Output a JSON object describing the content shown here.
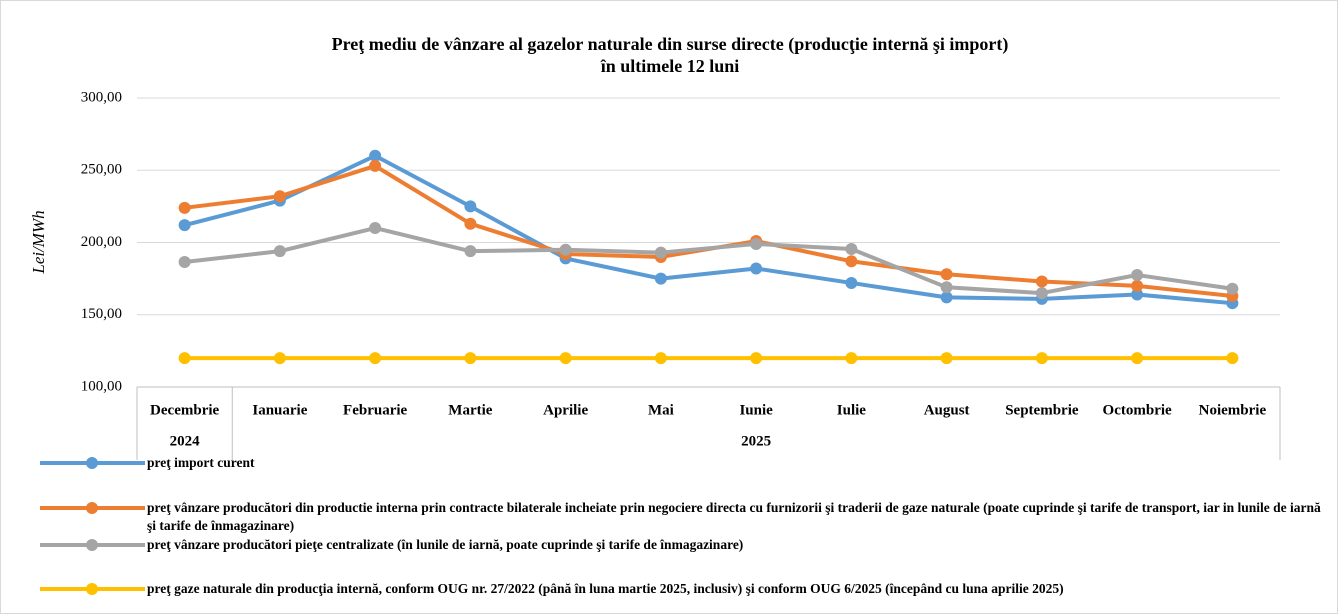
{
  "chart_data": {
    "type": "line",
    "title": [
      "Preţ  mediu de vânzare al gazelor naturale din surse directe (producţie internă şi import)",
      "în ultimele 12 luni"
    ],
    "y_label": "Lei/MWh",
    "categories": [
      "Decembrie",
      "Ianuarie",
      "Februarie",
      "Martie",
      "Aprilie",
      "Mai",
      "Iunie",
      "Iulie",
      "August",
      "Septembrie",
      "Octombrie",
      "Noiembrie"
    ],
    "x_groups": [
      {
        "label": "2024",
        "count": 1
      },
      {
        "label": "2025",
        "count": 11
      }
    ],
    "ylim": [
      100,
      300
    ],
    "yticks": [
      {
        "value": 100,
        "label": "100,00"
      },
      {
        "value": 150,
        "label": "150,00"
      },
      {
        "value": 200,
        "label": "200,00"
      },
      {
        "value": 250,
        "label": "250,00"
      },
      {
        "value": 300,
        "label": "300,00"
      }
    ],
    "grid": true,
    "legend": "bottom",
    "series": [
      {
        "name": "preţ import curent",
        "color": "#5b9bd5",
        "values": [
          212,
          229,
          260,
          225,
          189,
          175,
          182,
          172,
          162,
          161,
          164,
          158
        ]
      },
      {
        "name": "preţ vânzare producători din productie interna prin contracte bilaterale incheiate  prin negociere directa cu furnizorii şi traderii de gaze naturale (poate cuprinde şi tarife de transport, iar in lunile de iarnă şi tarife de înmagazinare)",
        "color": "#ed7d31",
        "values": [
          224,
          232,
          253,
          213,
          192,
          190,
          201,
          187,
          178,
          173,
          170,
          163
        ]
      },
      {
        "name": "preţ vânzare producători pieţe centralizate (în lunile de iarnă, poate cuprinde şi tarife de înmagazinare)",
        "color": "#a5a5a5",
        "values": [
          186.5,
          194,
          210,
          194,
          195,
          193,
          199,
          195.5,
          169,
          165,
          177.5,
          168
        ]
      },
      {
        "name": "preţ gaze naturale din producţia internă, conform OUG nr. 27/2022 (până în luna martie 2025, inclusiv) şi conform OUG 6/2025 (începând cu luna aprilie 2025)",
        "color": "#ffc000",
        "values": [
          120,
          120,
          120,
          120,
          120,
          120,
          120,
          120,
          120,
          120,
          120,
          120
        ]
      }
    ]
  }
}
